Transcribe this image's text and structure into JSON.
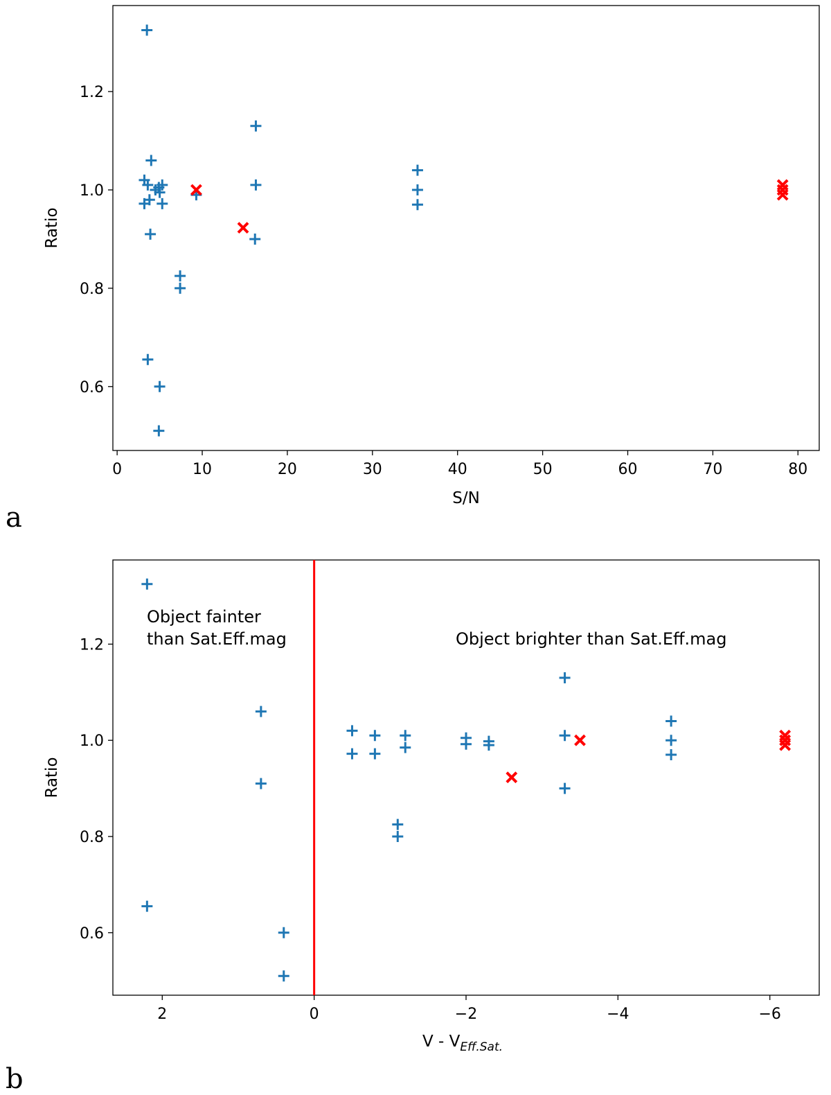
{
  "chart_data": [
    {
      "panel": "a",
      "type": "scatter",
      "title": "",
      "xlabel": "S/N",
      "ylabel": "Ratio",
      "xlim": [
        -0.5,
        82.5
      ],
      "ylim": [
        0.47,
        1.375
      ],
      "xticks": [
        0,
        10,
        20,
        30,
        40,
        50,
        60,
        70,
        80
      ],
      "xtick_labels": [
        "0",
        "10",
        "20",
        "30",
        "40",
        "50",
        "60",
        "70",
        "80"
      ],
      "yticks": [
        0.6,
        0.8,
        1.0,
        1.2
      ],
      "ytick_labels": [
        "0.6",
        "0.8",
        "1.0",
        "1.2"
      ],
      "series": [
        {
          "name": "plus markers",
          "marker": "+",
          "color": "#1f77b4",
          "points": [
            [
              3.5,
              1.325
            ],
            [
              3.2,
              1.02
            ],
            [
              3.2,
              0.972
            ],
            [
              3.6,
              1.01
            ],
            [
              3.8,
              0.98
            ],
            [
              4.0,
              1.06
            ],
            [
              3.9,
              0.91
            ],
            [
              3.6,
              0.655
            ],
            [
              4.5,
              1.0
            ],
            [
              4.9,
              1.005
            ],
            [
              5.0,
              0.995
            ],
            [
              5.3,
              1.01
            ],
            [
              5.3,
              0.972
            ],
            [
              5.0,
              0.6
            ],
            [
              4.9,
              0.51
            ],
            [
              7.4,
              0.825
            ],
            [
              7.4,
              0.8
            ],
            [
              9.3,
              0.99
            ],
            [
              16.3,
              1.13
            ],
            [
              16.3,
              1.01
            ],
            [
              16.2,
              0.9
            ],
            [
              35.3,
              1.04
            ],
            [
              35.3,
              1.0
            ],
            [
              35.3,
              0.97
            ]
          ]
        },
        {
          "name": "x markers",
          "marker": "x",
          "color": "#ff0000",
          "points": [
            [
              9.3,
              1.0
            ],
            [
              14.8,
              0.923
            ],
            [
              78.2,
              1.01
            ],
            [
              78.2,
              1.0
            ],
            [
              78.2,
              0.99
            ]
          ]
        }
      ]
    },
    {
      "panel": "b",
      "type": "scatter",
      "title": "",
      "xlabel": "V - V",
      "xlabel_subscript": "Eff.Sat.",
      "ylabel": "Ratio",
      "xlim": [
        2.65,
        -6.65
      ],
      "ylim": [
        0.47,
        1.375
      ],
      "xticks": [
        2,
        0,
        -2,
        -4,
        -6
      ],
      "xtick_labels": [
        "2",
        "0",
        "−2",
        "−4",
        "−6"
      ],
      "yticks": [
        0.6,
        0.8,
        1.0,
        1.2
      ],
      "ytick_labels": [
        "0.6",
        "0.8",
        "1.0",
        "1.2"
      ],
      "vline": {
        "x": 0,
        "color": "#ff0000"
      },
      "annotations": [
        {
          "lines": [
            "Object fainter",
            "than Sat.Eff.mag"
          ]
        },
        {
          "lines": [
            "Object brighter than Sat.Eff.mag"
          ]
        }
      ],
      "series": [
        {
          "name": "plus markers",
          "marker": "+",
          "color": "#1f77b4",
          "points": [
            [
              2.2,
              1.325
            ],
            [
              2.2,
              0.655
            ],
            [
              0.7,
              1.06
            ],
            [
              0.7,
              0.91
            ],
            [
              0.4,
              0.6
            ],
            [
              0.4,
              0.51
            ],
            [
              -0.5,
              1.02
            ],
            [
              -0.5,
              0.972
            ],
            [
              -0.8,
              1.01
            ],
            [
              -0.8,
              0.972
            ],
            [
              -1.1,
              0.825
            ],
            [
              -1.1,
              0.8
            ],
            [
              -1.2,
              1.01
            ],
            [
              -1.2,
              0.985
            ],
            [
              -2.0,
              1.005
            ],
            [
              -2.0,
              0.992
            ],
            [
              -2.3,
              0.998
            ],
            [
              -2.3,
              0.99
            ],
            [
              -3.3,
              1.13
            ],
            [
              -3.3,
              1.01
            ],
            [
              -3.3,
              0.9
            ],
            [
              -4.7,
              1.04
            ],
            [
              -4.7,
              1.0
            ],
            [
              -4.7,
              0.97
            ]
          ]
        },
        {
          "name": "x markers",
          "marker": "x",
          "color": "#ff0000",
          "points": [
            [
              -2.6,
              0.923
            ],
            [
              -3.5,
              1.0
            ],
            [
              -6.2,
              1.01
            ],
            [
              -6.2,
              1.0
            ],
            [
              -6.2,
              0.99
            ]
          ]
        }
      ]
    }
  ]
}
